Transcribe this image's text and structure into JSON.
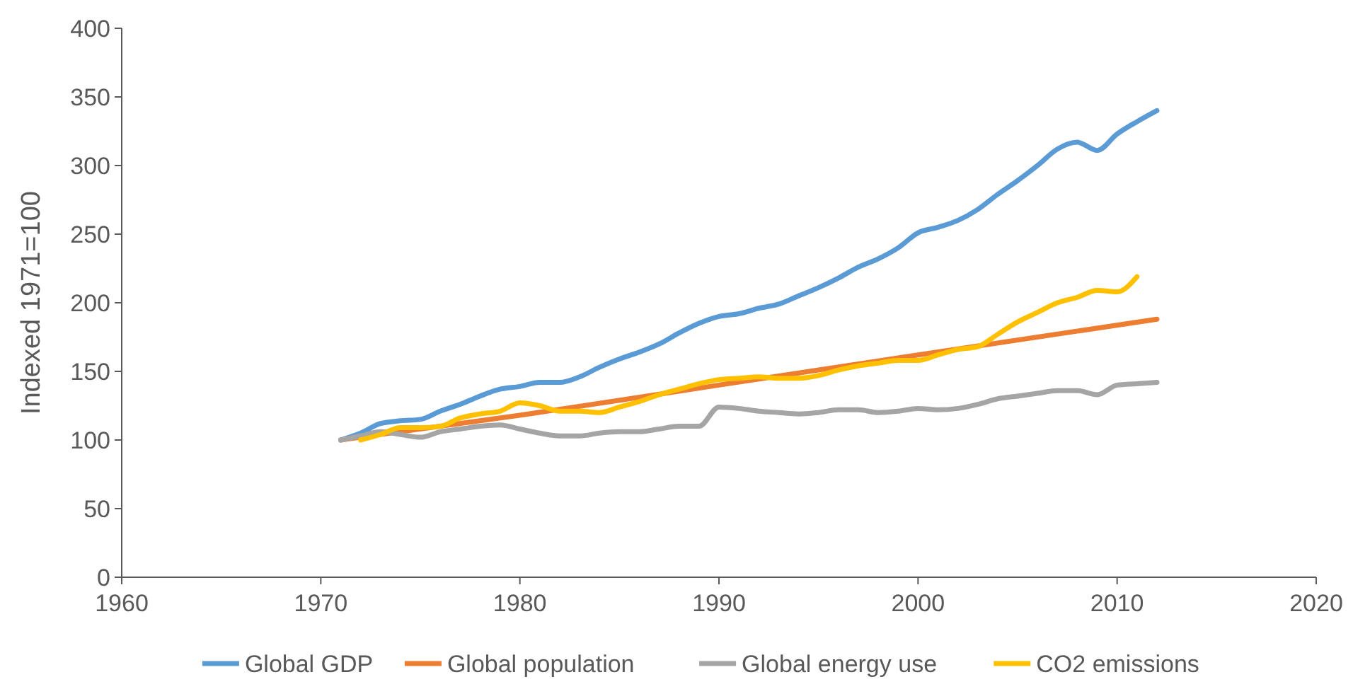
{
  "chart_data": {
    "type": "line",
    "ylabel": "Indexed 1971=100",
    "xlim": [
      1960,
      2020
    ],
    "xticks": [
      1960,
      1970,
      1980,
      1990,
      2000,
      2010,
      2020
    ],
    "ylim": [
      0,
      400
    ],
    "yticks": [
      0,
      50,
      100,
      150,
      200,
      250,
      300,
      350,
      400
    ],
    "grid": false,
    "legend": "bottom",
    "marker": "none",
    "line_style": "solid",
    "series": [
      {
        "name": "Global GDP",
        "color": "#5b9bd5",
        "x": [
          1971,
          1972,
          1973,
          1974,
          1975,
          1976,
          1977,
          1978,
          1979,
          1980,
          1981,
          1982,
          1983,
          1984,
          1985,
          1986,
          1987,
          1988,
          1989,
          1990,
          1991,
          1992,
          1993,
          1994,
          1995,
          1996,
          1997,
          1998,
          1999,
          2000,
          2001,
          2002,
          2003,
          2004,
          2005,
          2006,
          2007,
          2008,
          2009,
          2010,
          2011,
          2012
        ],
        "values": [
          100,
          105,
          112,
          114,
          115,
          121,
          126,
          132,
          137,
          139,
          142,
          142,
          146,
          153,
          159,
          164,
          170,
          178,
          185,
          190,
          192,
          196,
          199,
          205,
          211,
          218,
          226,
          232,
          240,
          251,
          255,
          260,
          268,
          279,
          289,
          300,
          312,
          317,
          311,
          323,
          332,
          340
        ]
      },
      {
        "name": "Global population",
        "color": "#ed7d31",
        "x": [
          1971,
          1980,
          1990,
          2000,
          2012
        ],
        "values": [
          100,
          118,
          140,
          162,
          188
        ]
      },
      {
        "name": "Global energy use",
        "color": "#a5a5a5",
        "x": [
          1971,
          1972,
          1973,
          1974,
          1975,
          1976,
          1977,
          1978,
          1979,
          1980,
          1981,
          1982,
          1983,
          1984,
          1985,
          1986,
          1987,
          1988,
          1989,
          1990,
          1991,
          1992,
          1993,
          1994,
          1995,
          1996,
          1997,
          1998,
          1999,
          2000,
          2001,
          2002,
          2003,
          2004,
          2005,
          2006,
          2007,
          2008,
          2009,
          2010,
          2011,
          2012
        ],
        "values": [
          100,
          103,
          106,
          104,
          102,
          106,
          108,
          110,
          111,
          108,
          105,
          103,
          103,
          105,
          106,
          106,
          108,
          110,
          110,
          124,
          123,
          121,
          120,
          119,
          120,
          122,
          122,
          120,
          121,
          123,
          122,
          123,
          126,
          130,
          132,
          134,
          136,
          136,
          133,
          140,
          141,
          142
        ]
      },
      {
        "name": "CO2 emissions",
        "color": "#ffc000",
        "x": [
          1972,
          1973,
          1974,
          1975,
          1976,
          1977,
          1978,
          1979,
          1980,
          1981,
          1982,
          1983,
          1984,
          1985,
          1986,
          1987,
          1988,
          1989,
          1990,
          1991,
          1992,
          1993,
          1994,
          1995,
          1996,
          1997,
          1998,
          1999,
          2000,
          2001,
          2002,
          2003,
          2004,
          2005,
          2006,
          2007,
          2008,
          2009,
          2010,
          2011
        ],
        "values": [
          100,
          104,
          109,
          109,
          110,
          116,
          119,
          121,
          127,
          125,
          121,
          121,
          120,
          124,
          128,
          133,
          137,
          141,
          144,
          145,
          146,
          145,
          145,
          147,
          151,
          154,
          156,
          158,
          158,
          162,
          166,
          168,
          177,
          186,
          193,
          200,
          204,
          209,
          208,
          219
        ]
      }
    ]
  }
}
